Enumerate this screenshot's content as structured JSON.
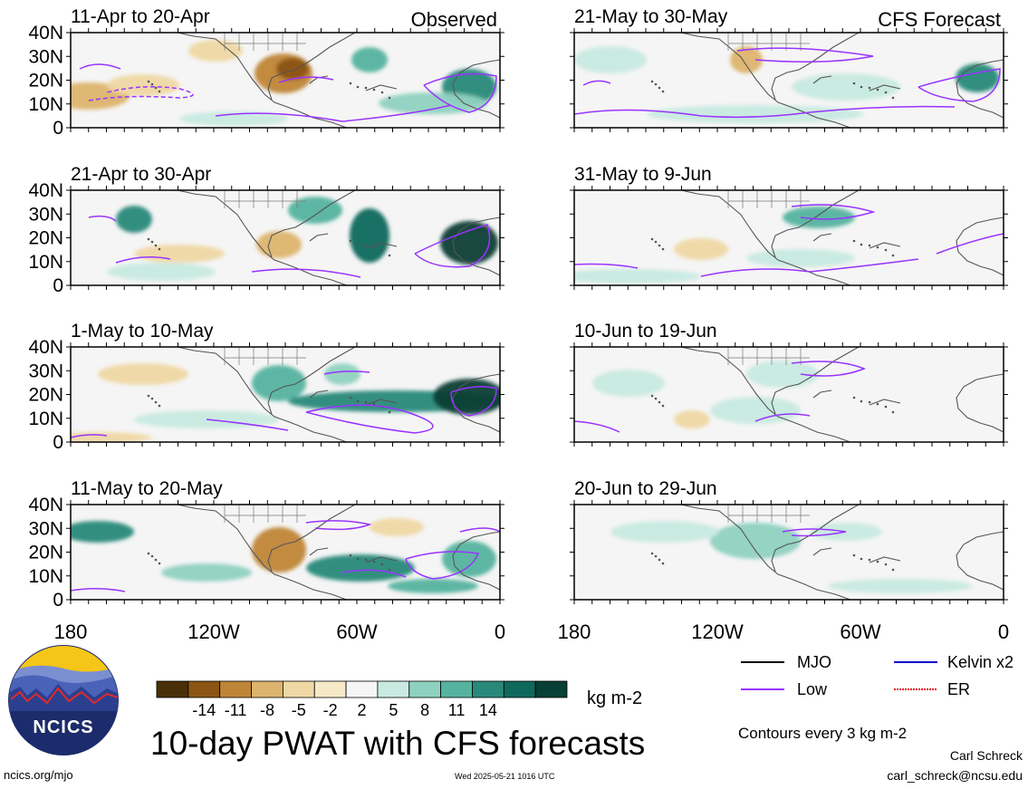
{
  "title": "10-day PWAT with CFS forecasts",
  "observed_label": "Observed",
  "forecast_label": "CFS Forecast",
  "panels_left": [
    {
      "period": "11-Apr to 20-Apr"
    },
    {
      "period": "21-Apr to 30-Apr"
    },
    {
      "period": "1-May to 10-May"
    },
    {
      "period": "11-May to 20-May"
    }
  ],
  "panels_right": [
    {
      "period": "21-May to 30-May"
    },
    {
      "period": "31-May to 9-Jun"
    },
    {
      "period": "10-Jun to 19-Jun"
    },
    {
      "period": "20-Jun to 29-Jun"
    }
  ],
  "lat_labels": [
    "40N",
    "30N",
    "20N",
    "10N",
    "0"
  ],
  "lon_labels": [
    "180",
    "120W",
    "60W",
    "0"
  ],
  "colorbar": {
    "unit": "kg m-2",
    "ticks": [
      "-14",
      "-11",
      "-8",
      "-5",
      "-2",
      "2",
      "5",
      "8",
      "11",
      "14"
    ],
    "colors": [
      "#4a3008",
      "#8c5514",
      "#bf8536",
      "#ddb46e",
      "#efd8a4",
      "#f6e9c8",
      "#f5f5f5",
      "#c8eae0",
      "#8fd1c0",
      "#55b39f",
      "#28897a",
      "#0f685c",
      "#083f36"
    ]
  },
  "legend": [
    {
      "label": "MJO",
      "color": "#000000"
    },
    {
      "label": "Kelvin x2",
      "color": "#0000cc"
    },
    {
      "label": "Low",
      "color": "#9933ff"
    },
    {
      "label": "ER",
      "color": "#dd0000"
    }
  ],
  "contour_note": "Contours every 3 kg m-2",
  "logo_text": "NCICS",
  "website": "ncics.org/mjo",
  "timestamp": "Wed 2025-05-21 1016 UTC",
  "credit_name": "Carl Schreck",
  "credit_email": "carl_schreck@ncsu.edu"
}
